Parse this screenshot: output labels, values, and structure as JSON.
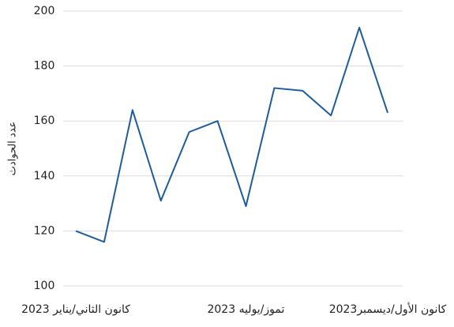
{
  "chart_data": {
    "type": "line",
    "y_label": "عدد الحوادث",
    "categories": [
      "كانون الثاني/يناير 2023",
      null,
      null,
      null,
      null,
      null,
      "تموز/يوليه 2023",
      null,
      null,
      null,
      null,
      "كانون الأول/ديسمبر2023"
    ],
    "series": [
      {
        "name": null,
        "color": "#1f5b98",
        "values": [
          120,
          116,
          164,
          131,
          156,
          160,
          129,
          172,
          171,
          162,
          194,
          163
        ]
      }
    ],
    "ylim": [
      100,
      200
    ],
    "yticks": [
      100,
      120,
      140,
      160,
      180,
      200
    ],
    "grid": true
  }
}
